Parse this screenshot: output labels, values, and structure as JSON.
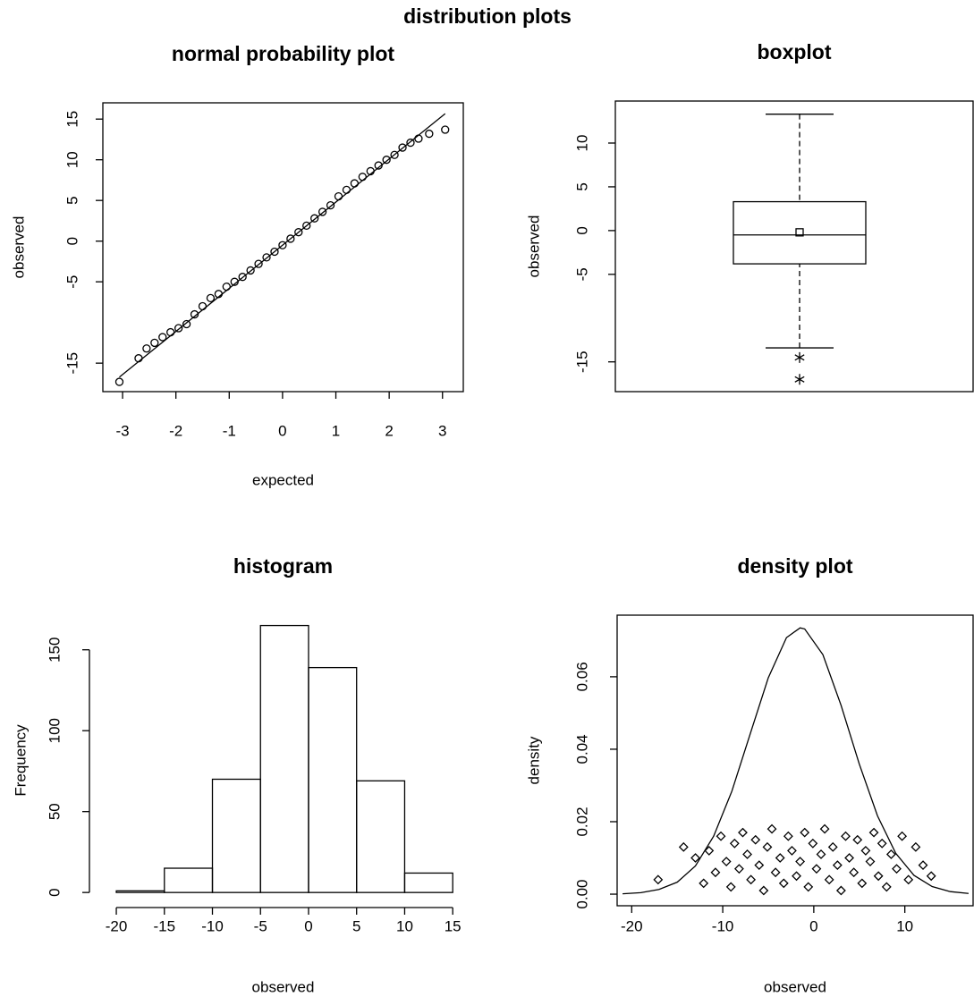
{
  "title": "distribution plots",
  "chart_data": [
    {
      "type": "scatter",
      "title": "normal probability plot",
      "xlabel": "expected",
      "ylabel": "observed",
      "xlim": [
        -3.37,
        3.39
      ],
      "ylim": [
        -18.5,
        17.0
      ],
      "xticks": [
        -3,
        -2,
        -1,
        0,
        1,
        2,
        3
      ],
      "yticks": [
        -15,
        -5,
        0,
        5,
        10,
        15
      ],
      "x": [
        -3.06,
        -2.7,
        -2.55,
        -2.4,
        -2.25,
        -2.1,
        -1.95,
        -1.8,
        -1.65,
        -1.5,
        -1.35,
        -1.2,
        -1.05,
        -0.9,
        -0.75,
        -0.6,
        -0.45,
        -0.3,
        -0.15,
        0,
        0.15,
        0.3,
        0.45,
        0.6,
        0.75,
        0.9,
        1.05,
        1.2,
        1.35,
        1.5,
        1.65,
        1.8,
        1.95,
        2.1,
        2.25,
        2.4,
        2.55,
        2.75,
        3.05
      ],
      "y": [
        -17.3,
        -14.4,
        -13.2,
        -12.5,
        -11.8,
        -11.2,
        -10.7,
        -10.2,
        -9.0,
        -8.0,
        -7.0,
        -6.5,
        -5.6,
        -5.0,
        -4.4,
        -3.6,
        -2.8,
        -2.0,
        -1.3,
        -0.5,
        0.3,
        1.1,
        1.9,
        2.8,
        3.6,
        4.4,
        5.5,
        6.3,
        7.1,
        7.9,
        8.6,
        9.3,
        10.0,
        10.6,
        11.5,
        12.1,
        12.6,
        13.2,
        13.7
      ],
      "line": {
        "intercept": -0.5,
        "slope": 5.3
      },
      "color": "#000000"
    },
    {
      "type": "box",
      "title": "boxplot",
      "ylabel": "observed",
      "ylim": [
        -18.4,
        14.8
      ],
      "yticks": [
        -15,
        -5,
        0,
        5,
        10
      ],
      "stats": {
        "min": -13.4,
        "q1": -3.8,
        "median": -0.5,
        "q3": 3.3,
        "max": 13.3
      },
      "mean": -0.2,
      "outliers": [
        -14.5,
        -17.0
      ],
      "color": "#000000"
    },
    {
      "type": "histogram",
      "title": "histogram",
      "xlabel": "observed",
      "ylabel": "Frequency",
      "xlim": [
        -21.4,
        16.1
      ],
      "ylim": [
        -8.2,
        171.4
      ],
      "xticks": [
        -20,
        -15,
        -10,
        -5,
        0,
        5,
        10,
        15
      ],
      "yticks": [
        0,
        50,
        100,
        150
      ],
      "bins": [
        -20,
        -15,
        -10,
        -5,
        0,
        5,
        10,
        15
      ],
      "counts": [
        1,
        15,
        70,
        165,
        139,
        69,
        12
      ],
      "color": "#ffffff"
    },
    {
      "type": "density",
      "title": "density plot",
      "xlabel": "observed",
      "ylabel": "density",
      "xlim": [
        -21.6,
        17.5
      ],
      "ylim": [
        -0.0032,
        0.077
      ],
      "xticks": [
        -20,
        -10,
        0,
        10
      ],
      "yticks": [
        {
          "value": 0,
          "label": "0.00"
        },
        0.02,
        0.04,
        0.06
      ],
      "curve": {
        "x": [
          -21,
          -19,
          -17,
          -15,
          -13,
          -11,
          -9,
          -7,
          -5,
          -3,
          -1.5,
          -1,
          1,
          3,
          5,
          7,
          9,
          11,
          13,
          15,
          17
        ],
        "y": [
          0.0001,
          0.0004,
          0.0013,
          0.0033,
          0.0078,
          0.016,
          0.0284,
          0.0441,
          0.0597,
          0.0708,
          0.0735,
          0.0732,
          0.0661,
          0.0521,
          0.0359,
          0.0216,
          0.0113,
          0.0052,
          0.0021,
          0.0007,
          0.0002
        ]
      },
      "points": {
        "x": [
          -17.1,
          -14.3,
          -13.0,
          -12.1,
          -11.5,
          -10.8,
          -10.2,
          -9.6,
          -9.1,
          -8.7,
          -8.2,
          -7.8,
          -7.3,
          -6.9,
          -6.4,
          -6.0,
          -5.5,
          -5.1,
          -4.6,
          -4.2,
          -3.7,
          -3.3,
          -2.8,
          -2.4,
          -1.9,
          -1.5,
          -1.0,
          -0.6,
          -0.1,
          0.3,
          0.8,
          1.2,
          1.7,
          2.1,
          2.6,
          3.0,
          3.5,
          3.9,
          4.4,
          4.8,
          5.3,
          5.7,
          6.2,
          6.6,
          7.1,
          7.5,
          8.0,
          8.5,
          9.1,
          9.7,
          10.4,
          11.2,
          12.0,
          12.9
        ],
        "y": [
          0.004,
          0.013,
          0.01,
          0.003,
          0.012,
          0.006,
          0.016,
          0.009,
          0.002,
          0.014,
          0.007,
          0.017,
          0.011,
          0.004,
          0.015,
          0.008,
          0.001,
          0.013,
          0.018,
          0.006,
          0.01,
          0.003,
          0.016,
          0.012,
          0.005,
          0.009,
          0.017,
          0.002,
          0.014,
          0.007,
          0.011,
          0.018,
          0.004,
          0.013,
          0.008,
          0.001,
          0.016,
          0.01,
          0.006,
          0.015,
          0.003,
          0.012,
          0.009,
          0.017,
          0.005,
          0.014,
          0.002,
          0.011,
          0.007,
          0.016,
          0.004,
          0.013,
          0.008,
          0.005
        ]
      },
      "color": "#000000"
    }
  ]
}
